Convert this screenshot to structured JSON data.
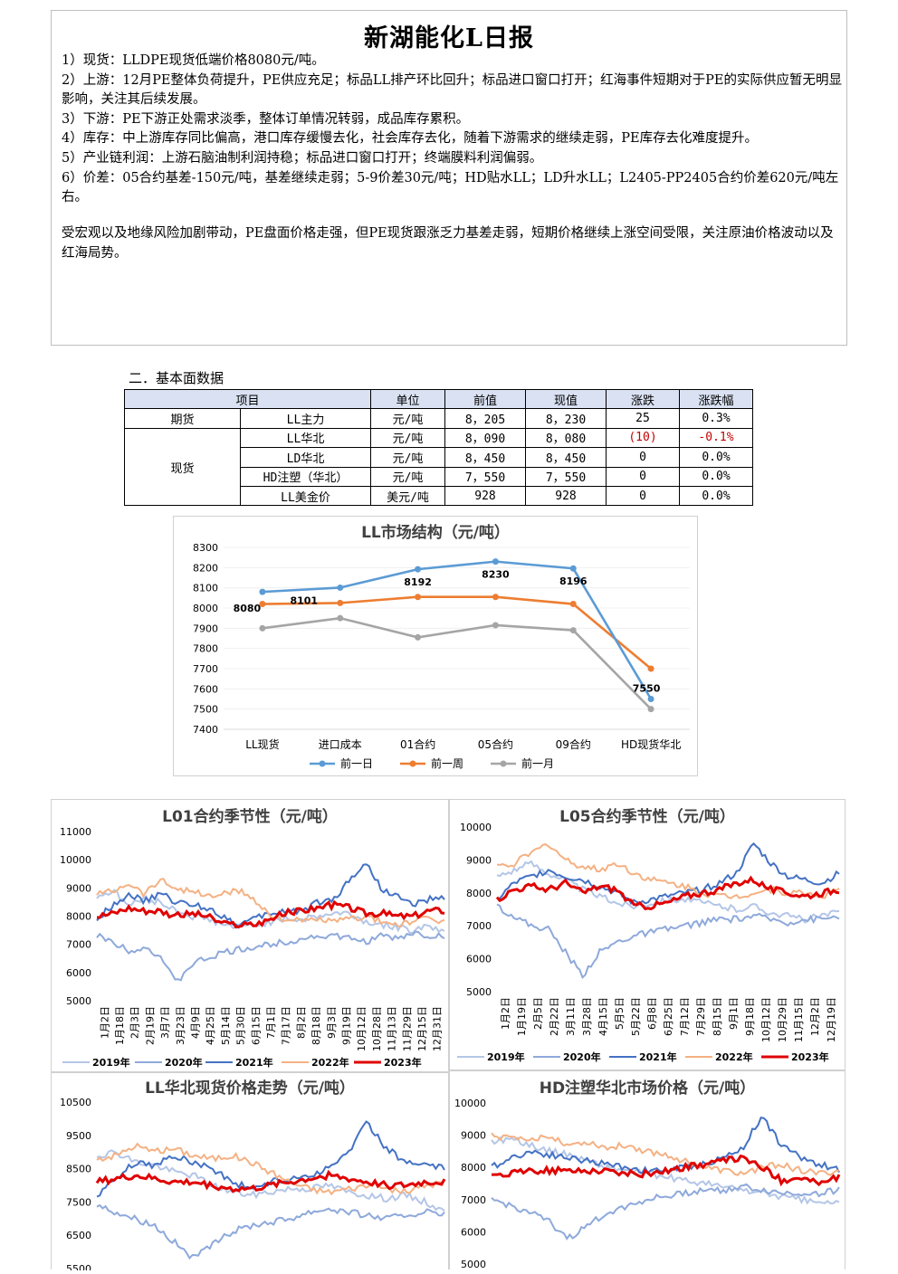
{
  "report": {
    "title": "新湖能化L日报",
    "lines": [
      "1）现货：LLDPE现货低端价格8080元/吨。",
      "2）上游：12月PE整体负荷提升，PE供应充足；标品LL排产环比回升；标品进口窗口打开；红海事件短期对于PE的实际供应暂无明显影响，关注其后续发展。",
      "3）下游：PE下游正处需求淡季，整体订单情况转弱，成品库存累积。",
      "4）库存：中上游库存同比偏高，港口库存缓慢去化，社会库存去化，随着下游需求的继续走弱，PE库存去化难度提升。",
      "5）产业链利润：上游石脑油制利润持稳；标品进口窗口打开；终端膜料利润偏弱。",
      "6）价差：05合约基差-150元/吨，基差继续走弱；5-9价差30元/吨；HD贴水LL；LD升水LL；L2405-PP2405合约价差620元/吨左右。"
    ],
    "summary": "受宏观以及地缘风险加剧带动，PE盘面价格走强，但PE现货跟涨乏力基差走弱，短期价格继续上涨空间受限，关注原油价格波动以及红海局势。"
  },
  "section_title": "二．基本面数据",
  "table": {
    "headers": [
      "项目",
      "单位",
      "前值",
      "现值",
      "涨跌",
      "涨跌幅"
    ],
    "group_futures": "期货",
    "group_spot": "现货",
    "rows": [
      {
        "name": "LL主力",
        "unit": "元/吨",
        "prev": "8，205",
        "curr": "8，230",
        "chg": "25",
        "pct": "0.3%"
      },
      {
        "name": "LL华北",
        "unit": "元/吨",
        "prev": "8，090",
        "curr": "8，080",
        "chg": "(10)",
        "pct": "-0.1%"
      },
      {
        "name": "LD华北",
        "unit": "元/吨",
        "prev": "8，450",
        "curr": "8，450",
        "chg": "0",
        "pct": "0.0%"
      },
      {
        "name": "HD注塑（华北）",
        "unit": "元/吨",
        "prev": "7，550",
        "curr": "7，550",
        "chg": "0",
        "pct": "0.0%"
      },
      {
        "name": "LL美金价",
        "unit": "美元/吨",
        "prev": "928",
        "curr": "928",
        "chg": "0",
        "pct": "0.0%"
      }
    ],
    "negative_color": "#c00000"
  },
  "chart_data": [
    {
      "type": "line",
      "title": "LL市场结构（元/吨）",
      "categories": [
        "LL现货",
        "进口成本",
        "01合约",
        "05合约",
        "09合约",
        "HD现货华北"
      ],
      "ylim": [
        7400,
        8300
      ],
      "yticks": [
        7400,
        7500,
        7600,
        7700,
        7800,
        7900,
        8000,
        8100,
        8200,
        8300
      ],
      "series": [
        {
          "name": "前一日",
          "color": "#5b9bd5",
          "values": [
            8080,
            8101,
            8192,
            8230,
            8196,
            7550
          ],
          "labels": [
            "8080",
            "8101",
            "8192",
            "8230",
            "8196",
            "7550"
          ]
        },
        {
          "name": "前一周",
          "color": "#ed7d31",
          "values": [
            8020,
            8025,
            8055,
            8055,
            8020,
            7700
          ]
        },
        {
          "name": "前一月",
          "color": "#a5a5a5",
          "values": [
            7900,
            7950,
            7855,
            7915,
            7890,
            7500
          ]
        }
      ],
      "legend": "bottom"
    },
    {
      "type": "line",
      "title": "L01合约季节性（元/吨）",
      "ylim": [
        5000,
        11000
      ],
      "yticks": [
        5000,
        6000,
        7000,
        8000,
        9000,
        10000,
        11000
      ],
      "x_ticks": [
        "1月2日",
        "1月18日",
        "2月3日",
        "2月19日",
        "3月7日",
        "3月23日",
        "4月9日",
        "4月25日",
        "5月14日",
        "5月30日",
        "6月15日",
        "7月1日",
        "7月17日",
        "8月2日",
        "8月18日",
        "9月3日",
        "9月19日",
        "10月12日",
        "10月28日",
        "11月13日",
        "11月29日",
        "12月15日",
        "12月31日"
      ],
      "series": [
        {
          "name": "2019年",
          "color": "#b4c6e7",
          "values": [
            8700,
            8900,
            8400,
            8600,
            8500,
            8200,
            8000,
            7900,
            7700,
            7600,
            7700,
            7800,
            7900,
            7900,
            8000,
            8100,
            8100,
            7800,
            7700,
            7600,
            7500,
            7700,
            7400
          ]
        },
        {
          "name": "2020年",
          "color": "#8ea9db",
          "values": [
            7300,
            7100,
            6800,
            6900,
            6600,
            5600,
            6300,
            6500,
            6700,
            6800,
            6900,
            7000,
            7100,
            7200,
            7300,
            7300,
            7200,
            7100,
            7300,
            7200,
            7400,
            7300,
            7300
          ]
        },
        {
          "name": "2021年",
          "color": "#4472c4",
          "values": [
            7900,
            8400,
            8800,
            8500,
            8800,
            8500,
            8400,
            8300,
            8000,
            7700,
            7900,
            8100,
            8200,
            8200,
            8500,
            8600,
            9300,
            9900,
            9000,
            8700,
            8400,
            8600,
            8600
          ]
        },
        {
          "name": "2022年",
          "color": "#f4b183",
          "values": [
            8800,
            8900,
            9200,
            8800,
            9300,
            9000,
            8900,
            8700,
            8800,
            8900,
            8600,
            8000,
            7900,
            7800,
            7900,
            7800,
            7900,
            8000,
            7800,
            7700,
            7800,
            7900,
            7800
          ]
        },
        {
          "name": "2023年",
          "color": "#e00000",
          "values": [
            8000,
            8100,
            8300,
            8200,
            8200,
            8000,
            8100,
            8000,
            7700,
            7700,
            7700,
            7900,
            8100,
            8200,
            8300,
            8400,
            8300,
            8100,
            8100,
            8000,
            8000,
            8200,
            8200
          ]
        }
      ],
      "legend": "bottom"
    },
    {
      "type": "line",
      "title": "L05合约季节性（元/吨）",
      "ylim": [
        5000,
        10000
      ],
      "yticks": [
        5000,
        6000,
        7000,
        8000,
        9000,
        10000
      ],
      "x_ticks": [
        "1月2日",
        "1月19日",
        "2月5日",
        "2月22日",
        "3月11日",
        "3月28日",
        "4月15日",
        "5月5日",
        "5月22日",
        "6月8日",
        "6月25日",
        "7月12日",
        "7月29日",
        "8月15日",
        "9月1日",
        "9月18日",
        "10月12日",
        "10月29日",
        "11月15日",
        "12月2日",
        "12月19日"
      ],
      "series": [
        {
          "name": "2019年",
          "color": "#b4c6e7",
          "values": [
            8500,
            8700,
            8900,
            8600,
            8400,
            8100,
            7900,
            7700,
            7600,
            7700,
            7800,
            7800,
            7700,
            7600,
            7500,
            7600,
            7400,
            7300,
            7200,
            7300,
            7400
          ]
        },
        {
          "name": "2020年",
          "color": "#8ea9db",
          "values": [
            7600,
            7300,
            7000,
            6900,
            6200,
            5500,
            6200,
            6500,
            6700,
            6800,
            6900,
            7000,
            7100,
            7200,
            7200,
            7300,
            7200,
            7100,
            7200,
            7200,
            7300
          ]
        },
        {
          "name": "2021年",
          "color": "#4472c4",
          "values": [
            7800,
            8300,
            8500,
            8700,
            8500,
            8400,
            8200,
            8000,
            7700,
            7800,
            7900,
            8000,
            8100,
            8300,
            8600,
            9500,
            8900,
            8500,
            8400,
            8300,
            8600
          ]
        },
        {
          "name": "2022年",
          "color": "#f4b183",
          "values": [
            8800,
            8900,
            9200,
            9500,
            9000,
            8800,
            8700,
            8900,
            8600,
            8400,
            8300,
            8200,
            8000,
            7900,
            7900,
            8000,
            8100,
            8000,
            8000,
            7900,
            8100
          ]
        },
        {
          "name": "2023年",
          "color": "#e00000",
          "values": [
            7800,
            8100,
            8200,
            8100,
            8300,
            8000,
            8200,
            8100,
            7600,
            7600,
            7700,
            7900,
            8000,
            8100,
            8300,
            8400,
            8100,
            8000,
            7900,
            8000,
            8100
          ]
        }
      ],
      "legend": "bottom"
    },
    {
      "type": "line",
      "title": "LL华北现货价格走势（元/吨）",
      "ylim": [
        5500,
        10500
      ],
      "yticks": [
        5500,
        6500,
        7500,
        8500,
        9500,
        10500
      ],
      "series": [
        {
          "name": "2019年",
          "color": "#b4c6e7",
          "values": [
            8900,
            9000,
            8700,
            8600,
            8400,
            8300,
            8000,
            7800,
            7700,
            7800,
            7900,
            7900,
            8000,
            7800,
            7700,
            7600,
            7700,
            7500,
            7200
          ]
        },
        {
          "name": "2020年",
          "color": "#8ea9db",
          "values": [
            7400,
            7200,
            7000,
            6800,
            6300,
            5800,
            6200,
            6600,
            6800,
            6900,
            7000,
            7200,
            7300,
            7200,
            7100,
            7000,
            7100,
            7200,
            7100
          ]
        },
        {
          "name": "2021年",
          "color": "#4472c4",
          "values": [
            7700,
            8200,
            8700,
            8600,
            8900,
            8700,
            8500,
            8100,
            7900,
            8100,
            8200,
            8300,
            8500,
            9000,
            9900,
            9100,
            8700,
            8600,
            8500
          ]
        },
        {
          "name": "2022年",
          "color": "#f4b183",
          "values": [
            8800,
            8900,
            9200,
            9000,
            9100,
            8900,
            8800,
            8900,
            8700,
            8400,
            8100,
            7900,
            7800,
            7900,
            8000,
            7900,
            7800,
            8000,
            8100
          ]
        },
        {
          "name": "2023年",
          "color": "#e00000",
          "values": [
            8100,
            8200,
            8300,
            8200,
            8100,
            8100,
            8000,
            7900,
            7900,
            8000,
            8100,
            8200,
            8300,
            8200,
            8100,
            8000,
            8000,
            8100,
            8100
          ]
        }
      ]
    },
    {
      "type": "line",
      "title": "HD注塑华北市场价格（元/吨）",
      "ylim": [
        5000,
        10000
      ],
      "yticks": [
        5000,
        6000,
        7000,
        8000,
        9000,
        10000
      ],
      "series": [
        {
          "name": "2019年",
          "color": "#b4c6e7",
          "values": [
            8800,
            8900,
            8700,
            8500,
            8400,
            8200,
            8000,
            7900,
            7800,
            7700,
            7600,
            7500,
            7400,
            7300,
            7200,
            7100,
            7000,
            6900,
            6900
          ]
        },
        {
          "name": "2020年",
          "color": "#8ea9db",
          "values": [
            7000,
            6800,
            6600,
            6300,
            5800,
            6200,
            6600,
            6800,
            7000,
            7100,
            7200,
            7300,
            7300,
            7400,
            7300,
            7200,
            7200,
            7200,
            7300
          ]
        },
        {
          "name": "2021年",
          "color": "#4472c4",
          "values": [
            8000,
            8300,
            8500,
            8400,
            8300,
            8200,
            8100,
            8000,
            7900,
            7900,
            8000,
            8100,
            8300,
            8600,
            9600,
            8700,
            8300,
            8100,
            7900
          ]
        },
        {
          "name": "2022年",
          "color": "#f4b183",
          "values": [
            9000,
            8900,
            8800,
            9000,
            8700,
            8800,
            8600,
            8700,
            8500,
            8400,
            8200,
            8000,
            7900,
            7800,
            8000,
            8100,
            7900,
            7800,
            7900
          ]
        },
        {
          "name": "2023年",
          "color": "#e00000",
          "values": [
            7700,
            7800,
            7900,
            7900,
            7900,
            7900,
            7900,
            7800,
            7800,
            7900,
            8000,
            8100,
            8200,
            8300,
            8000,
            7600,
            7700,
            7500,
            7700
          ]
        }
      ]
    }
  ]
}
